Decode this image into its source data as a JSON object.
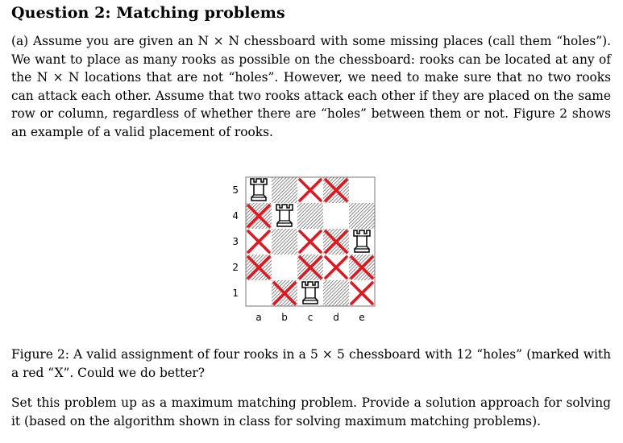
{
  "title": "Question 2: Matching problems",
  "intro": "(a) Assume you are given an N × N chessboard with some missing places (call them “holes”). We want to place as many rooks as possible on the chessboard: rooks can be located at any of the N × N locations that are not “holes”. However, we need to make sure that no two rooks can attack each other. Assume that two rooks attack each other if they are placed on the same row or column, regardless of whether there are “holes” between them or not. Figure 2 shows an example of a valid placement of rooks.",
  "figure": {
    "columns": [
      "a",
      "b",
      "c",
      "d",
      "e"
    ],
    "rows": [
      "5",
      "4",
      "3",
      "2",
      "1"
    ],
    "rooks": [
      "a5",
      "b4",
      "c1",
      "e3"
    ],
    "holes": [
      "c5",
      "d5",
      "a4",
      "a3",
      "c3",
      "d3",
      "a2",
      "c2",
      "d2",
      "e2",
      "b1",
      "e1"
    ],
    "hole_color": "#e8141c",
    "dark_square_style": "hatched"
  },
  "caption": "Figure 2: A valid assignment of four rooks in a 5 × 5 chessboard with 12 “holes” (marked with a red “X”. Could we do better?",
  "task": "Set this problem up as a maximum matching problem. Provide a solution approach for solving it (based on the algorithm shown in class for solving maximum matching problems)."
}
